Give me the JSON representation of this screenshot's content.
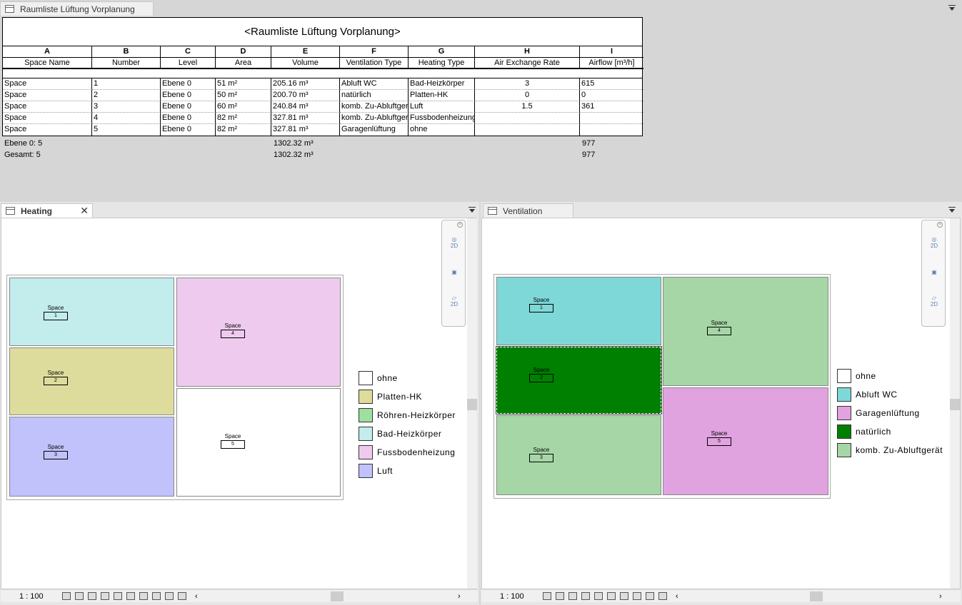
{
  "schedule_tab": {
    "label": "Raumliste Lüftung Vorplanung"
  },
  "schedule": {
    "title": "<Raumliste Lüftung Vorplanung>",
    "column_letters": [
      "A",
      "B",
      "C",
      "D",
      "E",
      "F",
      "G",
      "H",
      "I"
    ],
    "column_names": [
      "Space Name",
      "Number",
      "Level",
      "Area",
      "Volume",
      "Ventilation Type",
      "Heating Type",
      "Air Exchange Rate",
      "Airflow [m³/h]"
    ],
    "rows": [
      [
        "Space",
        "1",
        "Ebene 0",
        "51 m²",
        "205.16 m³",
        "Abluft WC",
        "Bad-Heizkörper",
        "3",
        "615"
      ],
      [
        "Space",
        "2",
        "Ebene 0",
        "50 m²",
        "200.70 m³",
        "natürlich",
        "Platten-HK",
        "0",
        "0"
      ],
      [
        "Space",
        "3",
        "Ebene 0",
        "60 m²",
        "240.84 m³",
        "komb. Zu-Abluftgerät",
        "Luft",
        "1.5",
        "361"
      ],
      [
        "Space",
        "4",
        "Ebene 0",
        "82 m²",
        "327.81 m³",
        "komb. Zu-Abluftgerät",
        "Fussbodenheizung",
        "",
        ""
      ],
      [
        "Space",
        "5",
        "Ebene 0",
        "82 m²",
        "327.81 m³",
        "Garagenlüftung",
        "ohne",
        "",
        ""
      ]
    ],
    "group_label": "Ebene 0: 5",
    "group_volume": "1302.32 m³",
    "group_airflow": "977",
    "total_label": "Gesamt: 5",
    "total_volume": "1302.32 m³",
    "total_airflow": "977"
  },
  "heating": {
    "tab_label": "Heating",
    "scale": "1 : 100",
    "room_name": "Space",
    "rooms": [
      {
        "number": "1",
        "color": "#c3ecec"
      },
      {
        "number": "2",
        "color": "#dedc9d"
      },
      {
        "number": "3",
        "color": "#c1c1fb"
      },
      {
        "number": "4",
        "color": "#eecbee"
      },
      {
        "number": "5",
        "color": "#ffffff"
      }
    ],
    "legend": [
      {
        "label": "ohne",
        "color": "#ffffff"
      },
      {
        "label": "Platten-HK",
        "color": "#dedc9d"
      },
      {
        "label": "Röhren-Heizkörper",
        "color": "#9fdf9f"
      },
      {
        "label": "Bad-Heizkörper",
        "color": "#c3ecec"
      },
      {
        "label": "Fussbodenheizung",
        "color": "#eecbee"
      },
      {
        "label": "Luft",
        "color": "#c1c1fb"
      }
    ]
  },
  "ventilation": {
    "tab_label": "Ventilation",
    "scale": "1 : 100",
    "room_name": "Space",
    "rooms": [
      {
        "number": "1",
        "color": "#7fd8d8"
      },
      {
        "number": "2",
        "color": "#008000"
      },
      {
        "number": "3",
        "color": "#a6d6a6"
      },
      {
        "number": "4",
        "color": "#a6d6a6"
      },
      {
        "number": "5",
        "color": "#e0a3e0"
      }
    ],
    "legend": [
      {
        "label": "ohne",
        "color": "#ffffff"
      },
      {
        "label": "Abluft WC",
        "color": "#7fd8d8"
      },
      {
        "label": "Garagenlüftung",
        "color": "#e0a3e0"
      },
      {
        "label": "natürlich",
        "color": "#008000"
      },
      {
        "label": "komb. Zu-Abluftgerät",
        "color": "#a6d6a6"
      }
    ]
  },
  "navbar": {
    "label_2d": "2D"
  }
}
